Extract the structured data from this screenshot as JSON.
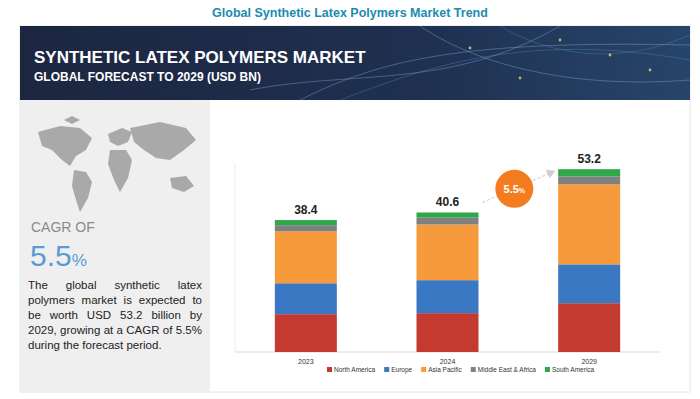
{
  "page_title": "Global Synthetic Latex Polymers Market Trend",
  "header": {
    "title": "SYNTHETIC LATEX POLYMERS MARKET",
    "subtitle": "GLOBAL FORECAST TO 2029 (USD BN)"
  },
  "sidebar": {
    "cagr_label": "CAGR OF",
    "cagr_value": "5.5%",
    "description": "The global synthetic latex polymers market is expected to be worth USD 53.2 billion by 2029, growing at a CAGR of 5.5% during the forecast period."
  },
  "chart_data": {
    "type": "bar",
    "stacked": true,
    "tick_labels": "x",
    "legend": "bottom",
    "categories": [
      "2023",
      "2024",
      "2029"
    ],
    "ylim": [
      0,
      55
    ],
    "series": [
      {
        "name": "North America",
        "color": "#c43a31",
        "values": [
          11.0,
          11.3,
          14.2
        ]
      },
      {
        "name": "Europe",
        "color": "#3b78c3",
        "values": [
          9.0,
          9.6,
          11.3
        ]
      },
      {
        "name": "Asia Pacific",
        "color": "#f79a3c",
        "values": [
          15.1,
          16.2,
          23.3
        ]
      },
      {
        "name": "Middle East & Africa",
        "color": "#808080",
        "values": [
          1.8,
          2.0,
          2.3
        ]
      },
      {
        "name": "South America",
        "color": "#2fa84a",
        "values": [
          1.5,
          1.5,
          2.1
        ]
      }
    ],
    "totals": [
      38.4,
      40.6,
      53.2
    ],
    "annotations": [
      "5.5%"
    ]
  }
}
